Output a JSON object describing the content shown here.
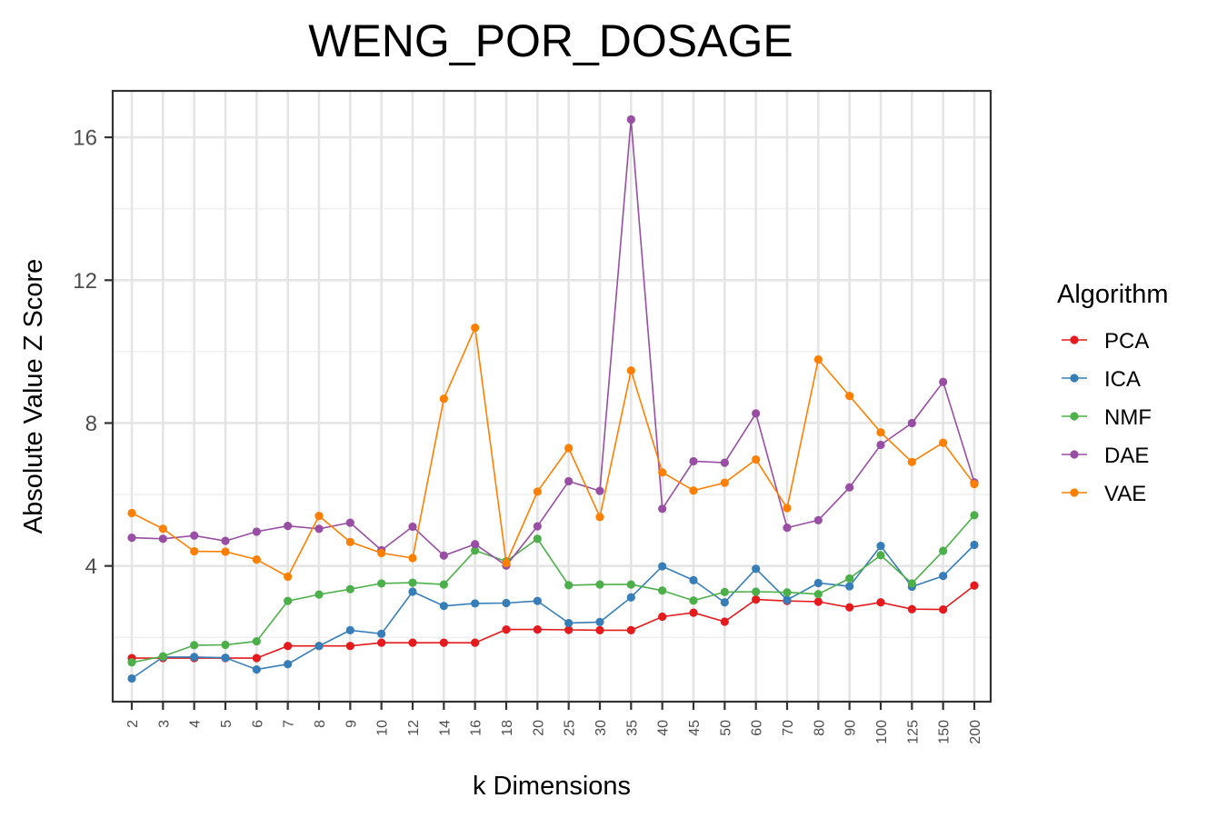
{
  "chart_data": {
    "type": "line",
    "title": "WENG_POR_DOSAGE",
    "xlabel": "k Dimensions",
    "ylabel": "Absolute Value Z Score",
    "categories": [
      "2",
      "3",
      "4",
      "5",
      "6",
      "7",
      "8",
      "9",
      "10",
      "12",
      "14",
      "16",
      "18",
      "20",
      "25",
      "30",
      "35",
      "40",
      "45",
      "50",
      "60",
      "70",
      "80",
      "90",
      "100",
      "125",
      "150",
      "200"
    ],
    "yticks": [
      "4",
      "8",
      "12",
      "16"
    ],
    "ytick_values": [
      4,
      8,
      12,
      16
    ],
    "ylim": [
      0.2,
      17.3
    ],
    "grid": true,
    "legend_title": "Algorithm",
    "legend_position": "right",
    "series": [
      {
        "name": "PCA",
        "color": "#e41a1c",
        "values": [
          1.42,
          1.42,
          1.42,
          1.42,
          1.42,
          1.76,
          1.76,
          1.76,
          1.85,
          1.85,
          1.85,
          1.85,
          2.22,
          2.22,
          2.21,
          2.2,
          2.2,
          2.58,
          2.69,
          2.44,
          3.06,
          3.02,
          3.0,
          2.84,
          2.98,
          2.79,
          2.78,
          3.45
        ]
      },
      {
        "name": "ICA",
        "color": "#377eb8",
        "values": [
          0.85,
          1.45,
          1.45,
          1.43,
          1.1,
          1.25,
          1.76,
          2.2,
          2.1,
          3.28,
          2.88,
          2.95,
          2.96,
          3.02,
          2.4,
          2.43,
          3.12,
          3.99,
          3.6,
          2.98,
          3.92,
          3.05,
          3.52,
          3.43,
          4.56,
          3.42,
          3.72,
          4.59
        ]
      },
      {
        "name": "NMF",
        "color": "#4daf4a",
        "values": [
          1.3,
          1.47,
          1.78,
          1.79,
          1.89,
          3.02,
          3.2,
          3.35,
          3.51,
          3.53,
          3.48,
          4.43,
          4.13,
          4.76,
          3.46,
          3.48,
          3.48,
          3.31,
          3.03,
          3.27,
          3.28,
          3.26,
          3.21,
          3.65,
          4.3,
          3.51,
          4.42,
          5.42
        ]
      },
      {
        "name": "DAE",
        "color": "#984ea3",
        "values": [
          4.79,
          4.76,
          4.85,
          4.7,
          4.96,
          5.12,
          5.04,
          5.21,
          4.44,
          5.1,
          4.29,
          4.61,
          4.01,
          5.11,
          6.37,
          6.1,
          16.5,
          5.6,
          6.93,
          6.89,
          8.27,
          5.07,
          5.28,
          6.2,
          7.39,
          8.0,
          9.15,
          6.34
        ]
      },
      {
        "name": "VAE",
        "color": "#ff7f00",
        "values": [
          5.48,
          5.04,
          4.41,
          4.4,
          4.18,
          3.7,
          5.4,
          4.67,
          4.36,
          4.22,
          8.68,
          10.67,
          4.08,
          6.08,
          7.3,
          5.37,
          9.47,
          6.62,
          6.11,
          6.33,
          6.98,
          5.62,
          9.78,
          8.76,
          7.74,
          6.91,
          7.45,
          6.29
        ]
      }
    ]
  }
}
